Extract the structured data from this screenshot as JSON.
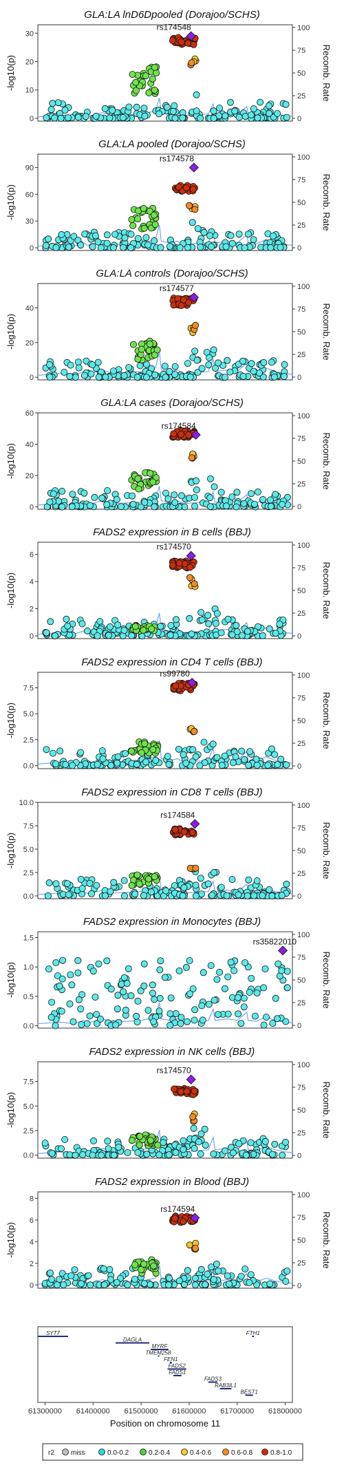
{
  "chart_data": {
    "type": "scatter",
    "x_label": "Position on chromosome 11",
    "x_ticks": [
      61300000,
      61400000,
      61500000,
      61600000,
      61700000,
      61800000
    ],
    "xlim": [
      61285000,
      61815000
    ],
    "y_label": "-log10(p)",
    "y2_label": "Recomb. Rate",
    "y2_ticks": [
      0,
      25,
      50,
      75,
      100
    ],
    "panels": [
      {
        "title": "GLA:LA lnD6Dpooled (Dorajoo/SCHS)",
        "lead_snp": "rs174548",
        "lead": [
          61604000,
          29
        ],
        "ylim": [
          -1,
          33
        ],
        "yticks": [
          0,
          10,
          20,
          30
        ],
        "tick_decimals": 0,
        "levels": {
          "green": 14,
          "red": 27,
          "orange": 21
        }
      },
      {
        "title": "GLA:LA pooled (Dorajoo/SCHS)",
        "lead_snp": "rs174578",
        "lead": [
          61610000,
          90
        ],
        "ylim": [
          -3,
          105
        ],
        "yticks": [
          0,
          30,
          60,
          90
        ],
        "tick_decimals": 0,
        "levels": {
          "green": 35,
          "red": 66,
          "orange": 50
        }
      },
      {
        "title": "GLA:LA controls (Dorajoo/SCHS)",
        "lead_snp": "rs174577",
        "lead": [
          61610000,
          46
        ],
        "ylim": [
          -1.5,
          54
        ],
        "yticks": [
          0,
          20,
          40
        ],
        "tick_decimals": 0,
        "levels": {
          "green": 16,
          "red": 43,
          "orange": 30
        }
      },
      {
        "title": "GLA:LA cases (Dorajoo/SCHS)",
        "lead_snp": "rs174584",
        "lead": [
          61614000,
          46
        ],
        "ylim": [
          -1.5,
          60
        ],
        "yticks": [
          0,
          20,
          40,
          60
        ],
        "tick_decimals": 0,
        "levels": {
          "green": 18,
          "red": 46,
          "orange": 35
        }
      },
      {
        "title": "FADS2 expression in B cells (BBJ)",
        "lead_snp": "rs174570",
        "lead": [
          61604000,
          5.9
        ],
        "ylim": [
          -0.2,
          6.9
        ],
        "yticks": [
          0,
          2,
          4,
          6
        ],
        "tick_decimals": 0,
        "levels": {
          "green": 0.6,
          "red": 5.2,
          "orange": 4.2
        }
      },
      {
        "title": "FADS2 expression in CD4 T cells (BBJ)",
        "lead_snp": "rs99780",
        "lead": [
          61606000,
          8.0
        ],
        "ylim": [
          -0.3,
          9.0
        ],
        "yticks": [
          0,
          2.5,
          5.0,
          7.5
        ],
        "tick_decimals": 1,
        "levels": {
          "green": 1.8,
          "red": 7.5,
          "orange": 3.8
        }
      },
      {
        "title": "FADS2 expression in CD8 T cells (BBJ)",
        "lead_snp": "rs174584",
        "lead": [
          61612000,
          7.7
        ],
        "ylim": [
          -0.3,
          10.0
        ],
        "yticks": [
          0,
          2.5,
          5.0,
          7.5,
          10.0
        ],
        "tick_decimals": 1,
        "levels": {
          "green": 1.8,
          "red": 6.8,
          "orange": 3.4
        }
      },
      {
        "title": "FADS2 expression in Monocytes (BBJ)",
        "lead_snp": "rs35822010",
        "lead": [
          61795000,
          1.28
        ],
        "ylim": [
          -0.04,
          1.6
        ],
        "yticks": [
          0,
          0.5,
          1.0,
          1.5
        ],
        "tick_decimals": 1,
        "levels": {
          "green": 0,
          "red": 0,
          "orange": 0
        }
      },
      {
        "title": "FADS2 expression in NK cells (BBJ)",
        "lead_snp": "rs174570",
        "lead": [
          61604000,
          7.7
        ],
        "ylim": [
          -0.3,
          9.5
        ],
        "yticks": [
          0,
          2.5,
          5.0,
          7.5
        ],
        "tick_decimals": 1,
        "levels": {
          "green": 1.6,
          "red": 6.4,
          "orange": 4.0
        }
      },
      {
        "title": "FADS2 expression in Blood (BBJ)",
        "lead_snp": "rs174594",
        "lead": [
          61612000,
          6.2
        ],
        "ylim": [
          -0.3,
          8.6
        ],
        "yticks": [
          0,
          2,
          4,
          6,
          8
        ],
        "tick_decimals": 0,
        "levels": {
          "green": 1.8,
          "red": 6.0,
          "orange": 3.8
        }
      }
    ],
    "genes": [
      {
        "name": "SYT7",
        "start": 61282000,
        "end": 61348000,
        "row": 0
      },
      {
        "name": "DAGLA",
        "start": 61447000,
        "end": 61517000,
        "row": 1
      },
      {
        "name": "MYRF",
        "start": 61520000,
        "end": 61557000,
        "row": 2
      },
      {
        "name": "TMEM258",
        "start": 61535000,
        "end": 61536000,
        "row": 3
      },
      {
        "name": "FEN1",
        "start": 61560000,
        "end": 61564000,
        "row": 4
      },
      {
        "name": "FADS2",
        "start": 61555000,
        "end": 61594000,
        "row": 5
      },
      {
        "name": "FADS1",
        "start": 61567000,
        "end": 61584000,
        "row": 6
      },
      {
        "name": "FADS3",
        "start": 61640000,
        "end": 61659000,
        "row": 7
      },
      {
        "name": "RAB3IL1",
        "start": 61664000,
        "end": 61688000,
        "row": 8
      },
      {
        "name": "BEST1",
        "start": 61717000,
        "end": 61733000,
        "row": 9
      },
      {
        "name": "FTH1",
        "start": 61731000,
        "end": 61735000,
        "row": 0
      }
    ],
    "legend": {
      "title": "r2",
      "items": [
        {
          "label": "miss",
          "color": "#bfbfbf"
        },
        {
          "label": "0.0-0.2",
          "color": "#2bd7d7"
        },
        {
          "label": "0.2-0.4",
          "color": "#4cd13a"
        },
        {
          "label": "0.4-0.6",
          "color": "#ffc52b"
        },
        {
          "label": "0.6-0.8",
          "color": "#ff8c1a"
        },
        {
          "label": "0.8-1.0",
          "color": "#d7250d"
        }
      ]
    },
    "colors": {
      "teal": "#5ce8e8",
      "green": "#6fe24c",
      "yellow": "#f3c12b",
      "orange": "#f28c24",
      "red": "#c9300f",
      "lead": "#8b1ee8",
      "recomb": "#6fa6ef"
    }
  }
}
